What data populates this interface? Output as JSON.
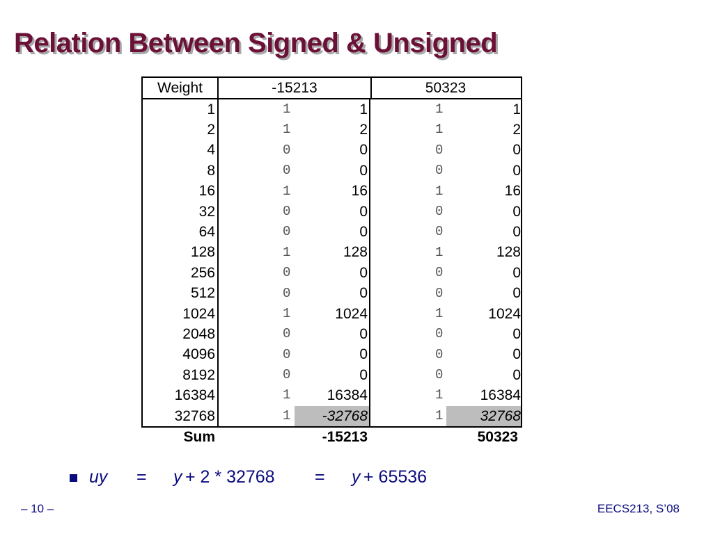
{
  "header": {
    "title": "Relation Between Signed & Unsigned"
  },
  "table": {
    "columns": [
      "Weight",
      "-15213",
      "50323"
    ],
    "rows": [
      [
        "1",
        "1",
        "1",
        "1",
        "1"
      ],
      [
        "2",
        "1",
        "2",
        "1",
        "2"
      ],
      [
        "4",
        "0",
        "0",
        "0",
        "0"
      ],
      [
        "8",
        "0",
        "0",
        "0",
        "0"
      ],
      [
        "16",
        "1",
        "16",
        "1",
        "16"
      ],
      [
        "32",
        "0",
        "0",
        "0",
        "0"
      ],
      [
        "64",
        "0",
        "0",
        "0",
        "0"
      ],
      [
        "128",
        "1",
        "128",
        "1",
        "128"
      ],
      [
        "256",
        "0",
        "0",
        "0",
        "0"
      ],
      [
        "512",
        "0",
        "0",
        "0",
        "0"
      ],
      [
        "1024",
        "1",
        "1024",
        "1",
        "1024"
      ],
      [
        "2048",
        "0",
        "0",
        "0",
        "0"
      ],
      [
        "4096",
        "0",
        "0",
        "0",
        "0"
      ],
      [
        "8192",
        "0",
        "0",
        "0",
        "0"
      ],
      [
        "16384",
        "1",
        "16384",
        "1",
        "16384"
      ],
      [
        "32768",
        "1",
        "-32768",
        "1",
        "32768"
      ]
    ],
    "sum": [
      "Sum",
      "-15213",
      "50323"
    ]
  },
  "bullet": [
    "uy",
    "=",
    "y",
    "+ 2 * 32768",
    "=",
    "y",
    "+ 65536"
  ],
  "footer": {
    "page": "– 10 –",
    "course": "EECS213, S’08"
  }
}
